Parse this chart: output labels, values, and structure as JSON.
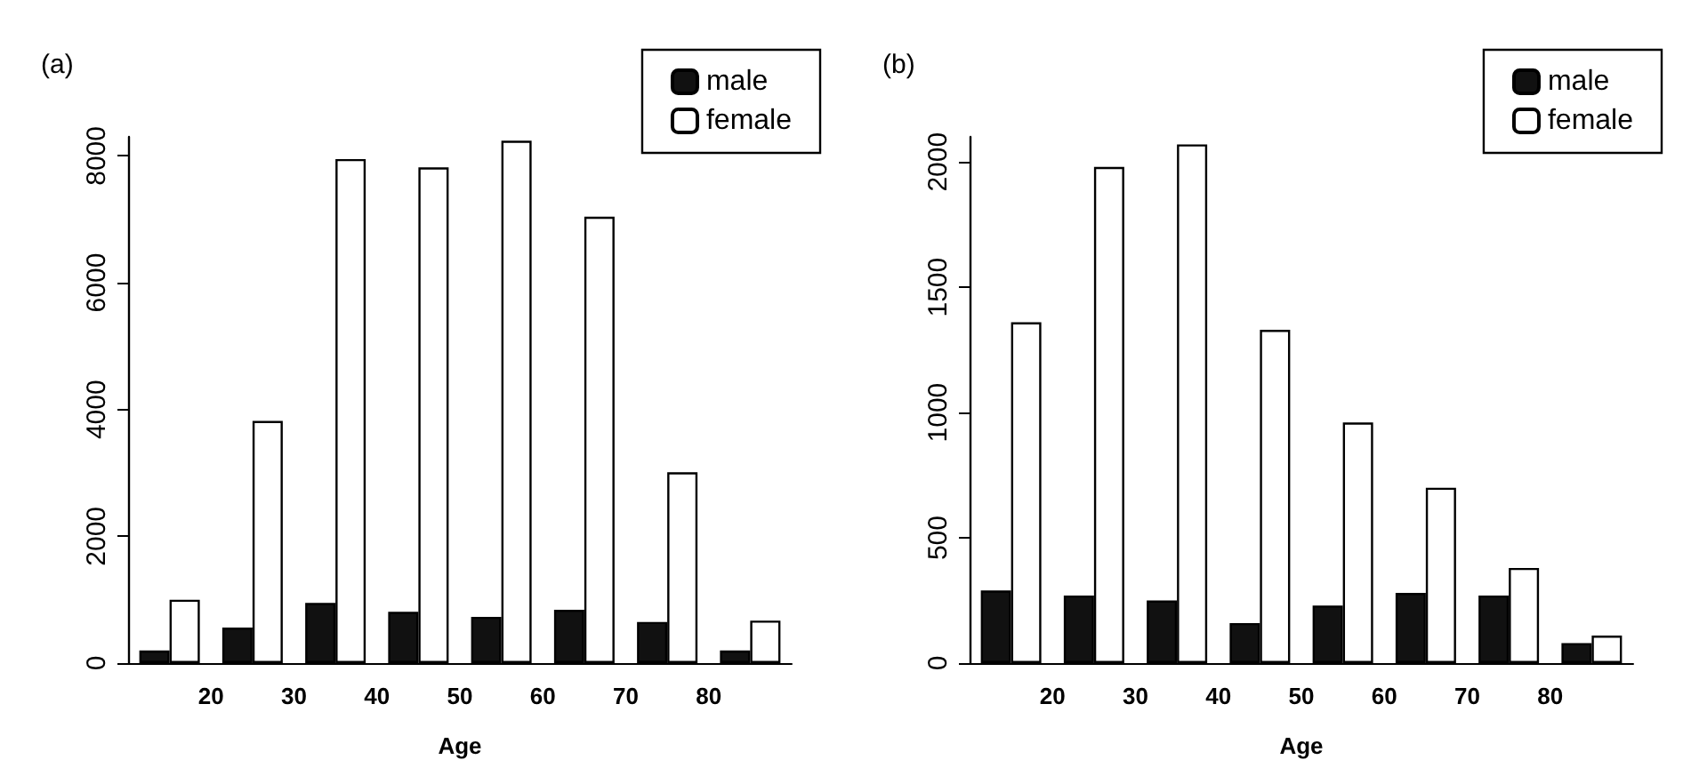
{
  "chart_data": [
    {
      "type": "bar",
      "title": "(a)",
      "xlabel": "Age",
      "x": [
        15,
        25,
        35,
        45,
        55,
        65,
        75,
        85
      ],
      "xlim": [
        10,
        90
      ],
      "xticks": [
        20,
        30,
        40,
        50,
        60,
        70,
        80
      ],
      "ylim": [
        0,
        8300
      ],
      "yticks": [
        0,
        2000,
        4000,
        6000,
        8000
      ],
      "legend": "top right",
      "series": [
        {
          "name": "male",
          "color": "#111111",
          "values": [
            200,
            560,
            950,
            810,
            730,
            840,
            650,
            200
          ]
        },
        {
          "name": "female",
          "color": "#ffffff",
          "values": [
            1000,
            3820,
            7950,
            7820,
            8240,
            7040,
            3010,
            670
          ]
        }
      ]
    },
    {
      "type": "bar",
      "title": "(b)",
      "xlabel": "Age",
      "x": [
        15,
        25,
        35,
        45,
        55,
        65,
        75,
        85
      ],
      "xlim": [
        10,
        90
      ],
      "xticks": [
        20,
        30,
        40,
        50,
        60,
        70,
        80
      ],
      "ylim": [
        0,
        2100
      ],
      "yticks": [
        0,
        500,
        1000,
        1500,
        2000
      ],
      "legend": "top right",
      "series": [
        {
          "name": "male",
          "color": "#111111",
          "values": [
            290,
            270,
            250,
            160,
            230,
            280,
            270,
            80
          ]
        },
        {
          "name": "female",
          "color": "#ffffff",
          "values": [
            1360,
            1980,
            2070,
            1330,
            960,
            700,
            380,
            110
          ]
        }
      ]
    }
  ]
}
